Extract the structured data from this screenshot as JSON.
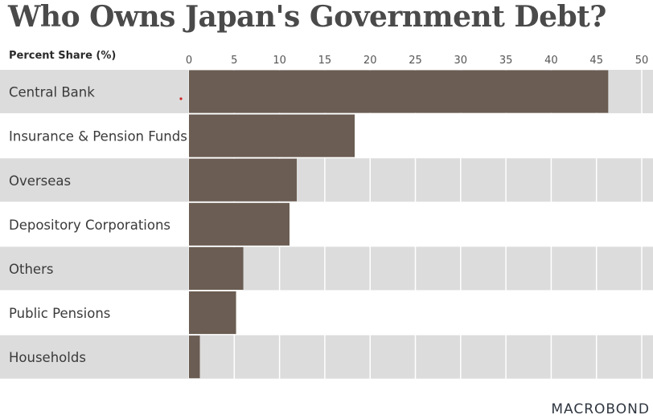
{
  "title": "Who Owns Japan's Government Debt?",
  "brand": "MACROBOND",
  "chart_data": {
    "type": "bar",
    "orientation": "horizontal",
    "ylabel": "Percent Share (%)",
    "categories": [
      "Central Bank",
      "Insurance & Pension Funds",
      "Overseas",
      "Depository Corporations",
      "Others",
      "Public Pensions",
      "Households"
    ],
    "values": [
      46.3,
      18.3,
      11.9,
      11.1,
      6.0,
      5.2,
      1.2
    ],
    "xlim": [
      0,
      50
    ],
    "ticks": [
      0,
      5,
      10,
      15,
      20,
      25,
      30,
      35,
      40,
      45,
      50
    ],
    "grid": true,
    "colors": {
      "bar": "#6b5d53",
      "band": "#dcdcdc",
      "gridline": "#ffffff",
      "marker": "#cc2222"
    }
  }
}
